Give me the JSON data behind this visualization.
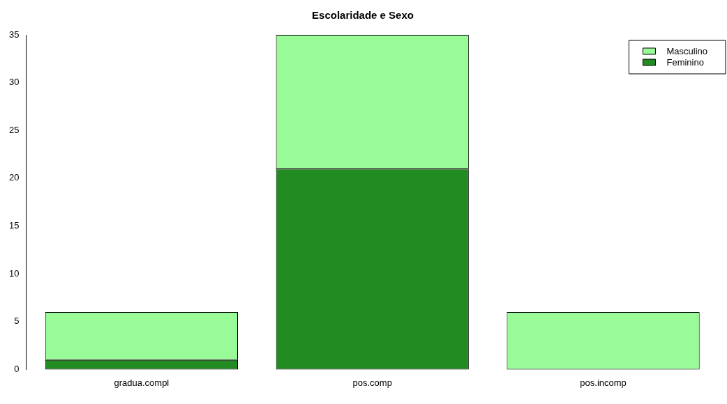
{
  "chart_data": {
    "type": "bar",
    "title": "Escolaridade e Sexo",
    "categories": [
      "gradua.compl",
      "pos.comp",
      "pos.incomp"
    ],
    "stacked": true,
    "ylim": [
      0,
      35
    ],
    "yticks": [
      0,
      5,
      10,
      15,
      20,
      25,
      30,
      35
    ],
    "grid": false,
    "legend": "top right",
    "series": [
      {
        "name": "Feminino",
        "color": "#228b22",
        "values": [
          1,
          21,
          0
        ]
      },
      {
        "name": "Masculino",
        "color": "#98fb98",
        "values": [
          5,
          14,
          6
        ]
      }
    ]
  }
}
